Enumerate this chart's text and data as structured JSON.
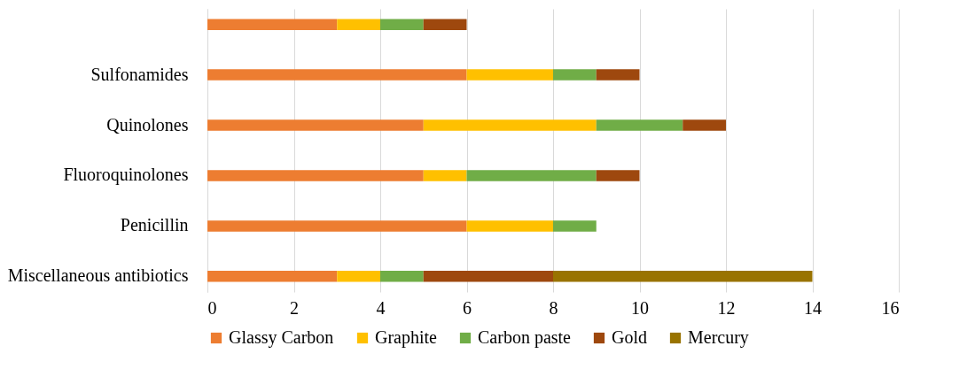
{
  "chart_data": {
    "type": "bar",
    "orientation": "horizontal",
    "stacked": true,
    "categories": [
      null,
      "Sulfonamides",
      "Quinolones",
      "Fluoroquinolones",
      "Penicillin",
      "Miscellaneous antibiotics"
    ],
    "series": [
      {
        "name": "Glassy Carbon",
        "color": "#ed7d31",
        "values": [
          3,
          6,
          5,
          5,
          6,
          3
        ]
      },
      {
        "name": "Graphite",
        "color": "#ffc000",
        "values": [
          1,
          2,
          4,
          1,
          2,
          1
        ]
      },
      {
        "name": "Carbon paste",
        "color": "#70ad47",
        "values": [
          1,
          1,
          2,
          3,
          1,
          1
        ]
      },
      {
        "name": "Gold",
        "color": "#9e480e",
        "values": [
          1,
          1,
          1,
          1,
          null,
          3
        ]
      },
      {
        "name": "Mercury",
        "color": "#997300",
        "values": [
          null,
          null,
          null,
          null,
          null,
          6
        ]
      }
    ],
    "xlim": [
      0,
      16
    ],
    "xticks": [
      0,
      2,
      4,
      6,
      8,
      10,
      12,
      14,
      16
    ],
    "grid": "x",
    "legend": "bottom"
  }
}
